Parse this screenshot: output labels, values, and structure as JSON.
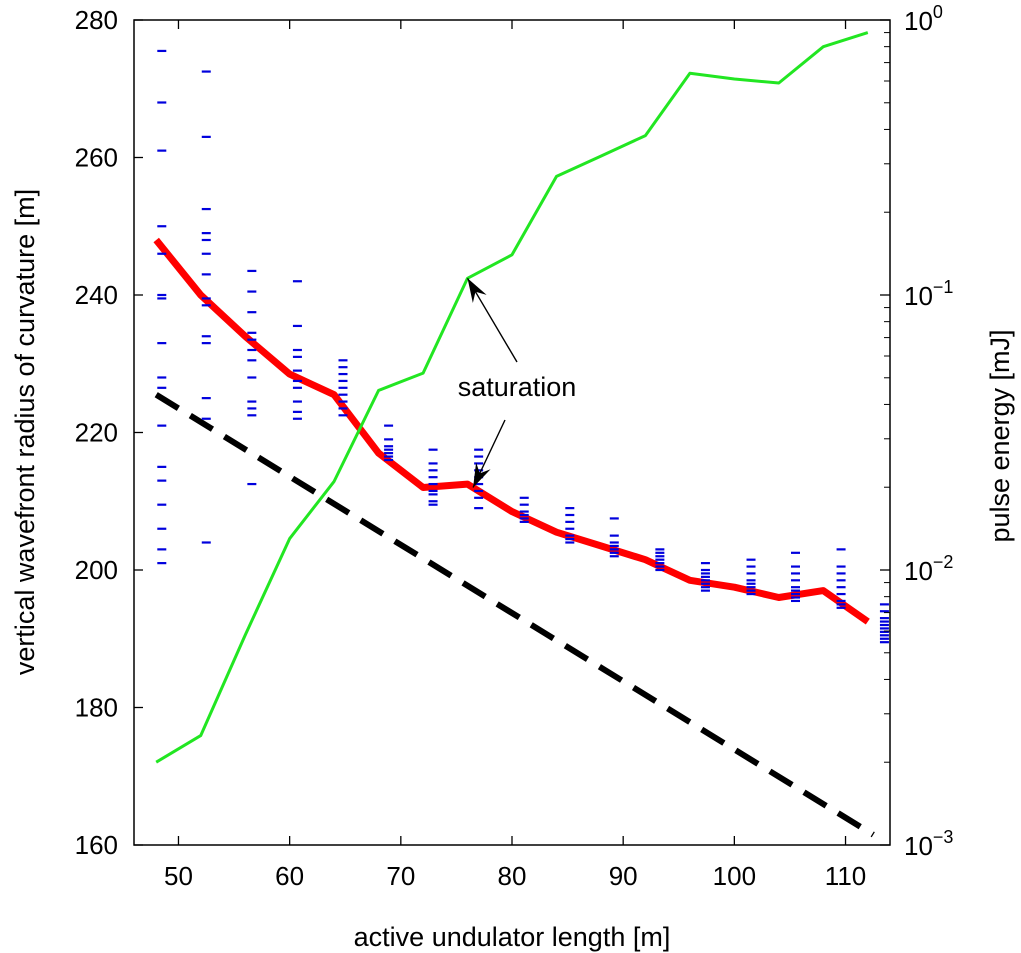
{
  "chart_data": {
    "type": "line",
    "xlabel": "active undulator length [m]",
    "ylabel_left": "vertical wavefront radius of curvature [m]",
    "ylabel_right": "pulse energy [mJ]",
    "xlim": [
      46,
      114
    ],
    "ylim_left": [
      160,
      280
    ],
    "ylim_right": [
      0.001,
      1
    ],
    "right_axis_scale": "log",
    "x_ticks": [
      50,
      60,
      70,
      80,
      90,
      100,
      110
    ],
    "y_ticks_left": [
      160,
      180,
      200,
      220,
      240,
      260,
      280
    ],
    "y_ticks_right": [
      {
        "value": 0.001,
        "base": "10",
        "exp": "−3"
      },
      {
        "value": 0.01,
        "base": "10",
        "exp": "−2"
      },
      {
        "value": 0.1,
        "base": "10",
        "exp": "−1"
      },
      {
        "value": 1,
        "base": "10",
        "exp": "0"
      }
    ],
    "grid": false,
    "annotation": {
      "text": "saturation",
      "arrow_targets": [
        {
          "x": 76,
          "y_right": 0.115
        },
        {
          "x": 76.5,
          "y": 212
        }
      ]
    },
    "series": [
      {
        "axis": "left",
        "color": "#ff0000",
        "style": "solid-thick",
        "x": [
          48,
          52,
          56,
          60,
          64,
          68,
          72,
          76,
          80,
          84,
          88,
          92,
          96,
          100,
          104,
          108,
          112
        ],
        "values": [
          248,
          240,
          234,
          228.5,
          225.5,
          217,
          212,
          212.5,
          208.5,
          205.5,
          203.5,
          201.5,
          198.5,
          197.5,
          196,
          197,
          192.5
        ]
      },
      {
        "axis": "left",
        "color": "#000000",
        "style": "dashed-thick",
        "x": [
          48,
          112.5
        ],
        "values": [
          225.5,
          161.5
        ]
      },
      {
        "axis": "right",
        "color": "#22e622",
        "style": "solid",
        "x": [
          48,
          52,
          56,
          60,
          64,
          68,
          72,
          76,
          80,
          84,
          88,
          92,
          96,
          100,
          104,
          108,
          112
        ],
        "values": [
          0.002,
          0.0025,
          0.0058,
          0.013,
          0.021,
          0.045,
          0.052,
          0.115,
          0.14,
          0.27,
          0.32,
          0.38,
          0.64,
          0.61,
          0.59,
          0.8,
          0.9
        ]
      },
      {
        "axis": "left",
        "color": "#0000dd",
        "style": "dash-markers",
        "points": [
          {
            "x": 48.5,
            "y": [
              275.5,
              268,
              261,
              250,
              246,
              240,
              239.5,
              233,
              228,
              226.5,
              221,
              215,
              213,
              209.5,
              206,
              203,
              201
            ]
          },
          {
            "x": 52.5,
            "y": [
              272.5,
              263,
              252.5,
              249,
              248,
              246,
              243,
              239.5,
              238.5,
              234,
              233,
              225,
              222,
              204
            ]
          },
          {
            "x": 56.6,
            "y": [
              243.5,
              240.5,
              237.5,
              234.5,
              233.5,
              232,
              230.5,
              228,
              224.5,
              223.5,
              222.5,
              212.5
            ]
          },
          {
            "x": 60.7,
            "y": [
              242,
              235.5,
              232,
              231,
              229,
              227.5,
              226.5,
              224.5,
              223,
              222
            ]
          },
          {
            "x": 64.8,
            "y": [
              230.5,
              229.5,
              228.5,
              227.5,
              226.5,
              225.5,
              224.5,
              223.5,
              222.5
            ]
          },
          {
            "x": 68.9,
            "y": [
              221,
              219,
              218,
              217.5,
              217,
              216.5,
              216
            ]
          },
          {
            "x": 72.9,
            "y": [
              217.5,
              215.5,
              214.5,
              213.5,
              212.5,
              211.5,
              211,
              210,
              209.5
            ]
          },
          {
            "x": 77.0,
            "y": [
              217.5,
              216.5,
              215.5,
              214.5,
              213.5,
              212.5,
              211.5,
              210.5,
              209
            ]
          },
          {
            "x": 81.1,
            "y": [
              210.5,
              209.5,
              208.5,
              208,
              207.5,
              207
            ]
          },
          {
            "x": 85.2,
            "y": [
              209,
              208,
              207,
              206,
              205,
              204.5,
              204
            ]
          },
          {
            "x": 89.2,
            "y": [
              207.5,
              205,
              204,
              203.5,
              203,
              202.5,
              202
            ]
          },
          {
            "x": 93.3,
            "y": [
              203,
              202.5,
              202,
              201.5,
              201,
              200.5,
              200
            ]
          },
          {
            "x": 97.4,
            "y": [
              201,
              200,
              199.5,
              199,
              198.5,
              198,
              197.5,
              197
            ]
          },
          {
            "x": 101.5,
            "y": [
              201.5,
              200.5,
              199.5,
              198.5,
              198,
              197.5,
              197,
              196.5
            ]
          },
          {
            "x": 105.5,
            "y": [
              202.5,
              200.5,
              199.5,
              198.5,
              197.5,
              197,
              196.5,
              196,
              195.5
            ]
          },
          {
            "x": 109.6,
            "y": [
              203,
              200.5,
              199.5,
              198.5,
              197.5,
              196.5,
              195.5,
              195,
              194.5
            ]
          },
          {
            "x": 113.5,
            "y": [
              195,
              194,
              193,
              192.5,
              192,
              191.5,
              191,
              190.5,
              190,
              189.5
            ]
          }
        ]
      }
    ]
  }
}
